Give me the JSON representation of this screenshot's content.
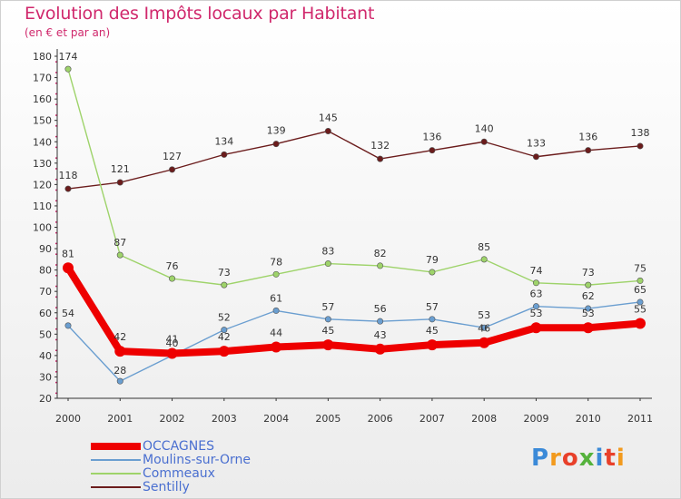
{
  "chart_data": {
    "type": "line",
    "title": "Evolution des Impôts locaux par Habitant",
    "subtitle": "(en € et par an)",
    "x": [
      "2000",
      "2001",
      "2002",
      "2003",
      "2004",
      "2005",
      "2006",
      "2007",
      "2008",
      "2009",
      "2010",
      "2011"
    ],
    "ylim": [
      20,
      180
    ],
    "yticks": [
      20,
      30,
      40,
      50,
      60,
      70,
      80,
      90,
      100,
      110,
      120,
      130,
      140,
      150,
      160,
      170,
      180
    ],
    "grid": false,
    "legend_position": "bottom-left",
    "series": [
      {
        "name": "OCCAGNES",
        "color": "#ee0000",
        "values": [
          81,
          42,
          41,
          42,
          44,
          45,
          43,
          45,
          46,
          53,
          53,
          55
        ],
        "labels": [
          "81",
          "42",
          "41",
          "42",
          "44",
          "45",
          "43",
          "45",
          "46",
          "53",
          "53",
          "55"
        ]
      },
      {
        "name": "Moulins-sur-Orne",
        "color": "#6a9ed0",
        "values": [
          54,
          28,
          40,
          52,
          61,
          57,
          56,
          57,
          53,
          63,
          62,
          65
        ],
        "labels": [
          "54",
          "28",
          "40",
          "52",
          "61",
          "57",
          "56",
          "57",
          "53",
          "63",
          "62",
          "65"
        ]
      },
      {
        "name": "Commeaux",
        "color": "#9ed36a",
        "values": [
          174,
          87,
          76,
          73,
          78,
          83,
          82,
          79,
          85,
          74,
          73,
          75
        ],
        "labels": [
          "174",
          "87",
          "76",
          "73",
          "78",
          "83",
          "82",
          "79",
          "85",
          "74",
          "73",
          "75"
        ]
      },
      {
        "name": "Sentilly",
        "color": "#6b1c1c",
        "values": [
          118,
          121,
          127,
          134,
          139,
          145,
          132,
          136,
          140,
          133,
          136,
          138
        ],
        "labels": [
          "118",
          "121",
          "127",
          "134",
          "139",
          "145",
          "132",
          "136",
          "140",
          "133",
          "136",
          "138"
        ]
      }
    ]
  },
  "logo_text": "Proxiti",
  "colors": {
    "title": "#d0286c",
    "axis": "#333333",
    "tick_dots": "#d0286c",
    "legend_text": "#4a6fd0"
  }
}
